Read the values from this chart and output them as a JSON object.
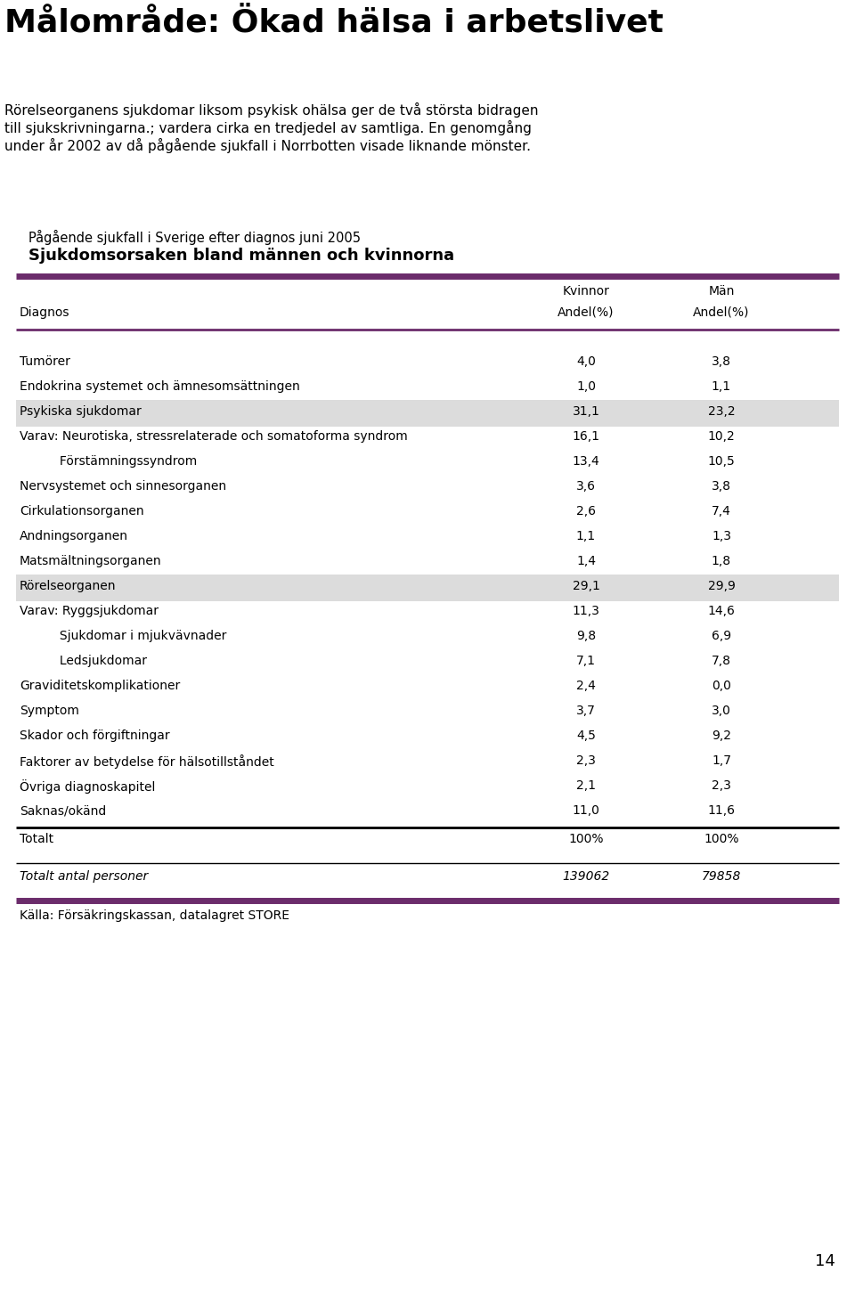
{
  "main_title": "Målområde: Ökad hälsa i arbetslivet",
  "body_text": "Rörelseorganens sjukdomar liksom psykisk ohälsa ger de två största bidragen\ntill sjukskrivningarna.; vardera cirka en tredjedel av samtliga. En genomgång\nunder år 2002 av då pågående sjukfall i Norrbotten visade liknande mönster.",
  "table_title1": "Pågående sjukfall i Sverige efter diagnos juni 2005",
  "table_title2": "Sjukdomsorsaken bland männen och kvinnorna",
  "col_header1": "Kvinnor",
  "col_header2": "Män",
  "col_subheader1": "Andel(%)",
  "col_subheader2": "Andel(%)",
  "col_diagnos": "Diagnos",
  "accent_color": "#6B2C6B",
  "rows": [
    {
      "label": "Tumörer",
      "kvinnor": "4,0",
      "man": "3,8",
      "indent": 0,
      "highlight": false
    },
    {
      "label": "Endokrina systemet och ämnesomsättningen",
      "kvinnor": "1,0",
      "man": "1,1",
      "indent": 0,
      "highlight": false
    },
    {
      "label": "Psykiska sjukdomar",
      "kvinnor": "31,1",
      "man": "23,2",
      "indent": 0,
      "highlight": true
    },
    {
      "label": "Varav: Neurotiska, stressrelaterade och somatoforma syndrom",
      "kvinnor": "16,1",
      "man": "10,2",
      "indent": 0,
      "highlight": false
    },
    {
      "label": "     Förstämningssyndrom",
      "kvinnor": "13,4",
      "man": "10,5",
      "indent": 1,
      "highlight": false
    },
    {
      "label": "Nervsystemet och sinnesorganen",
      "kvinnor": "3,6",
      "man": "3,8",
      "indent": 0,
      "highlight": false
    },
    {
      "label": "Cirkulationsorganen",
      "kvinnor": "2,6",
      "man": "7,4",
      "indent": 0,
      "highlight": false
    },
    {
      "label": "Andningsorganen",
      "kvinnor": "1,1",
      "man": "1,3",
      "indent": 0,
      "highlight": false
    },
    {
      "label": "Matsmältningsorganen",
      "kvinnor": "1,4",
      "man": "1,8",
      "indent": 0,
      "highlight": false
    },
    {
      "label": "Rörelseorganen",
      "kvinnor": "29,1",
      "man": "29,9",
      "indent": 0,
      "highlight": true
    },
    {
      "label": "Varav: Ryggsjukdomar",
      "kvinnor": "11,3",
      "man": "14,6",
      "indent": 0,
      "highlight": false
    },
    {
      "label": "     Sjukdomar i mjukvävnader",
      "kvinnor": "9,8",
      "man": "6,9",
      "indent": 1,
      "highlight": false
    },
    {
      "label": "     Ledsjukdomar",
      "kvinnor": "7,1",
      "man": "7,8",
      "indent": 1,
      "highlight": false
    },
    {
      "label": "Graviditetskomplikationer",
      "kvinnor": "2,4",
      "man": "0,0",
      "indent": 0,
      "highlight": false
    },
    {
      "label": "Symptom",
      "kvinnor": "3,7",
      "man": "3,0",
      "indent": 0,
      "highlight": false
    },
    {
      "label": "Skador och förgiftningar",
      "kvinnor": "4,5",
      "man": "9,2",
      "indent": 0,
      "highlight": false
    },
    {
      "label": "Faktorer av betydelse för hälsotillståndet",
      "kvinnor": "2,3",
      "man": "1,7",
      "indent": 0,
      "highlight": false
    },
    {
      "label": "Övriga diagnoskapitel",
      "kvinnor": "2,1",
      "man": "2,3",
      "indent": 0,
      "highlight": false
    },
    {
      "label": "Saknas/okänd",
      "kvinnor": "11,0",
      "man": "11,6",
      "indent": 0,
      "highlight": false
    }
  ],
  "total_row": {
    "label": "Totalt",
    "kvinnor": "100%",
    "man": "100%"
  },
  "footer_row": {
    "label": "Totalt antal personer",
    "kvinnor": "139062",
    "man": "79858"
  },
  "source_text": "Källa: Försäkringskassan, datalagret STORE",
  "page_number": "14",
  "highlight_color": "#DCDCDC",
  "bg_color": "#FFFFFF"
}
